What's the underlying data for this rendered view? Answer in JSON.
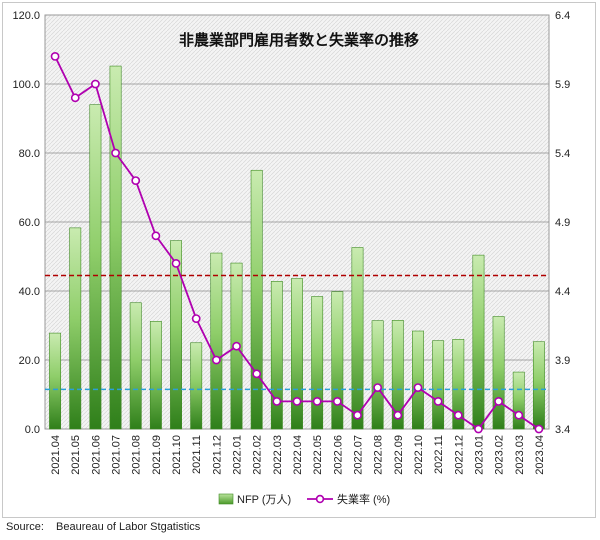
{
  "chart_data": {
    "type": "bar+line",
    "title": "非農業部門雇用者数と失業率の推移",
    "categories": [
      "2021.04",
      "2021.05",
      "2021.06",
      "2021.07",
      "2021.08",
      "2021.09",
      "2021.10",
      "2021.11",
      "2021.12",
      "2022.01",
      "2022.02",
      "2022.03",
      "2022.04",
      "2022.05",
      "2022.06",
      "2022.07",
      "2022.08",
      "2022.09",
      "2022.10",
      "2022.11",
      "2022.12",
      "2023.01",
      "2023.02",
      "2023.03",
      "2023.04"
    ],
    "series": [
      {
        "name": "NFP (万人)",
        "type": "bar",
        "axis": "left",
        "values": [
          27.8,
          58.3,
          94.0,
          105.2,
          36.6,
          31.2,
          54.6,
          25.0,
          51.0,
          48.1,
          75.0,
          42.8,
          43.6,
          38.4,
          39.8,
          52.6,
          31.4,
          31.5,
          28.4,
          25.6,
          26.0,
          50.4,
          32.6,
          16.5,
          25.3
        ],
        "color": "#5aa02c"
      },
      {
        "name": "失業率 (%)",
        "type": "line",
        "axis": "right",
        "values": [
          6.1,
          5.8,
          5.9,
          5.4,
          5.2,
          4.8,
          4.6,
          4.2,
          3.9,
          4.0,
          3.8,
          3.6,
          3.6,
          3.6,
          3.6,
          3.5,
          3.7,
          3.5,
          3.7,
          3.6,
          3.5,
          3.4,
          3.6,
          3.5,
          3.4
        ],
        "color": "#b000b0"
      }
    ],
    "reference_lines": [
      {
        "axis": "left",
        "value": 44.5,
        "color": "#b00000",
        "style": "dashed"
      },
      {
        "axis": "left",
        "value": 11.5,
        "color": "#2aa0d8",
        "style": "dashed"
      }
    ],
    "y_left": {
      "range": [
        0,
        120
      ],
      "ticks": [
        "0.0",
        "20.0",
        "40.0",
        "60.0",
        "80.0",
        "100.0",
        "120.0"
      ]
    },
    "y_right": {
      "range": [
        3.4,
        6.4
      ],
      "ticks": [
        "3.4",
        "3.9",
        "4.4",
        "4.9",
        "5.4",
        "5.9",
        "6.4"
      ]
    },
    "grid": true,
    "legend_position": "bottom"
  },
  "source": {
    "label": "Source:",
    "text": "Beaureau of Labor Stgatistics"
  }
}
